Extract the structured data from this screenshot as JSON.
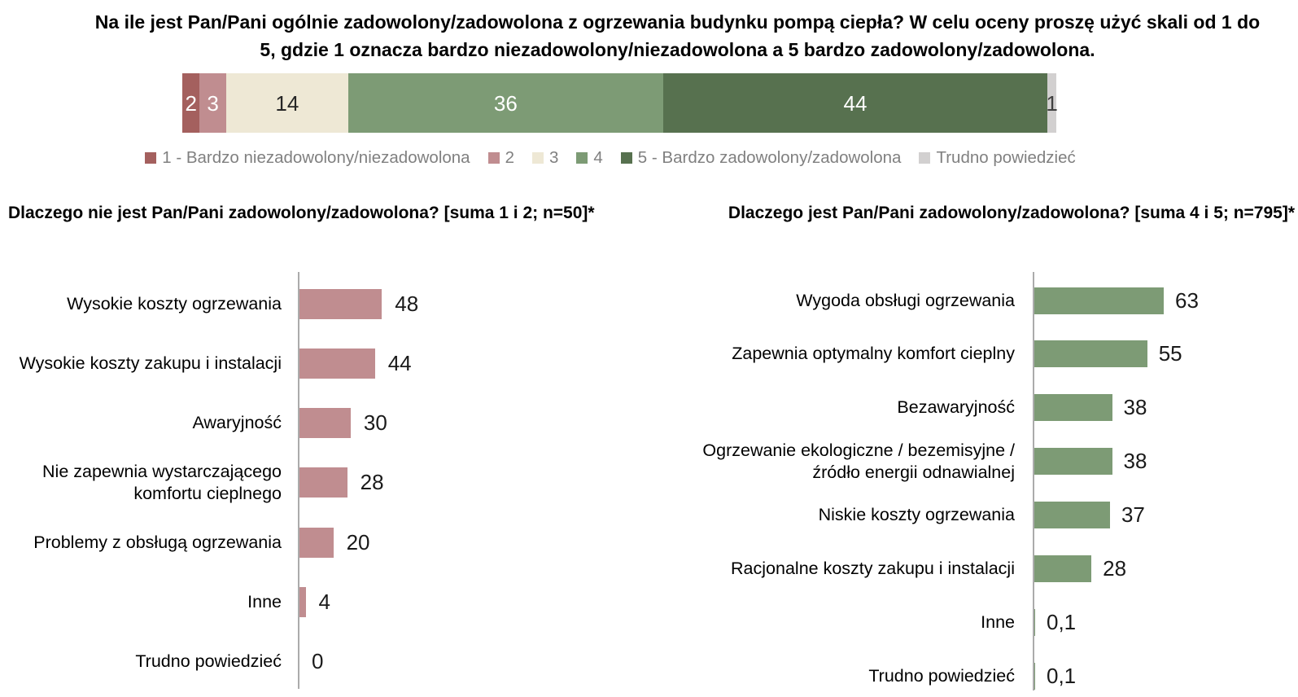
{
  "page": {
    "background": "#FFFFFF"
  },
  "colors": {
    "scale_1": "#A4605E",
    "scale_2": "#C08D90",
    "scale_3": "#EEE8D5",
    "scale_4": "#7D9B75",
    "scale_5": "#57714F",
    "dont_know_gray": "#D2D0D0",
    "axis_line": "#ABABAB",
    "legend_text": "#808080",
    "dark_label": "#262626"
  },
  "chart_data": [
    {
      "type": "bar",
      "variant": "horizontal-stacked-100pct",
      "title": "Na ile jest Pan/Pani ogólnie zadowolony/zadowolona z ogrzewania budynku pompą ciepła? W celu oceny proszę użyć skali od 1 do 5, gdzie 1 oznacza bardzo niezadowolony/niezadowolona a 5 bardzo zadowolony/zadowolona.",
      "categories": [
        "1 - Bardzo niezadowolony/niezadowolona",
        "2",
        "3",
        "4",
        "5 - Bardzo zadowolony/zadowolona",
        "Trudno powiedzieć"
      ],
      "values": [
        2,
        3,
        14,
        36,
        44,
        1
      ],
      "value_labels": [
        "2",
        "3",
        "14",
        "36",
        "44",
        "1"
      ],
      "colors": [
        "#A4605E",
        "#C08D90",
        "#EEE8D5",
        "#7D9B75",
        "#57714F",
        "#D2D0D0"
      ],
      "value_label_colors": [
        "#FFFFFF",
        "#FFFFFF",
        "#262626",
        "#FFFFFF",
        "#FFFFFF",
        "#404040"
      ],
      "xlim": [
        0,
        100
      ],
      "legend_position": "bottom",
      "grid": false
    },
    {
      "type": "bar",
      "variant": "horizontal",
      "title": "Dlaczego nie jest Pan/Pani zadowolony/zadowolona?  [suma 1 i 2; n=50]*",
      "categories": [
        "Wysokie koszty ogrzewania",
        "Wysokie koszty zakupu i instalacji",
        "Awaryjność",
        "Nie zapewnia wystarczającego komfortu cieplnego",
        "Problemy z obsługą ogrzewania",
        "Inne",
        "Trudno powiedzieć"
      ],
      "values": [
        48,
        44,
        30,
        28,
        20,
        4,
        0
      ],
      "value_labels": [
        "48",
        "44",
        "30",
        "28",
        "20",
        "4",
        "0"
      ],
      "bar_color": "#C08D90",
      "grid": false
    },
    {
      "type": "bar",
      "variant": "horizontal",
      "title": "Dlaczego jest Pan/Pani zadowolony/zadowolona? [suma 4 i 5; n=795]*",
      "categories": [
        "Wygoda obsługi ogrzewania",
        "Zapewnia optymalny komfort cieplny",
        "Bezawaryjność",
        "Ogrzewanie ekologiczne / bezemisyjne / źródło energii odnawialnej",
        "Niskie koszty ogrzewania",
        "Racjonalne koszty zakupu i instalacji",
        "Inne",
        "Trudno powiedzieć"
      ],
      "values": [
        63,
        55,
        38,
        38,
        37,
        28,
        0.1,
        0.1
      ],
      "value_labels": [
        "63",
        "55",
        "38",
        "38",
        "37",
        "28",
        "0,1",
        "0,1"
      ],
      "bar_color": "#7D9B75",
      "grid": false
    }
  ]
}
